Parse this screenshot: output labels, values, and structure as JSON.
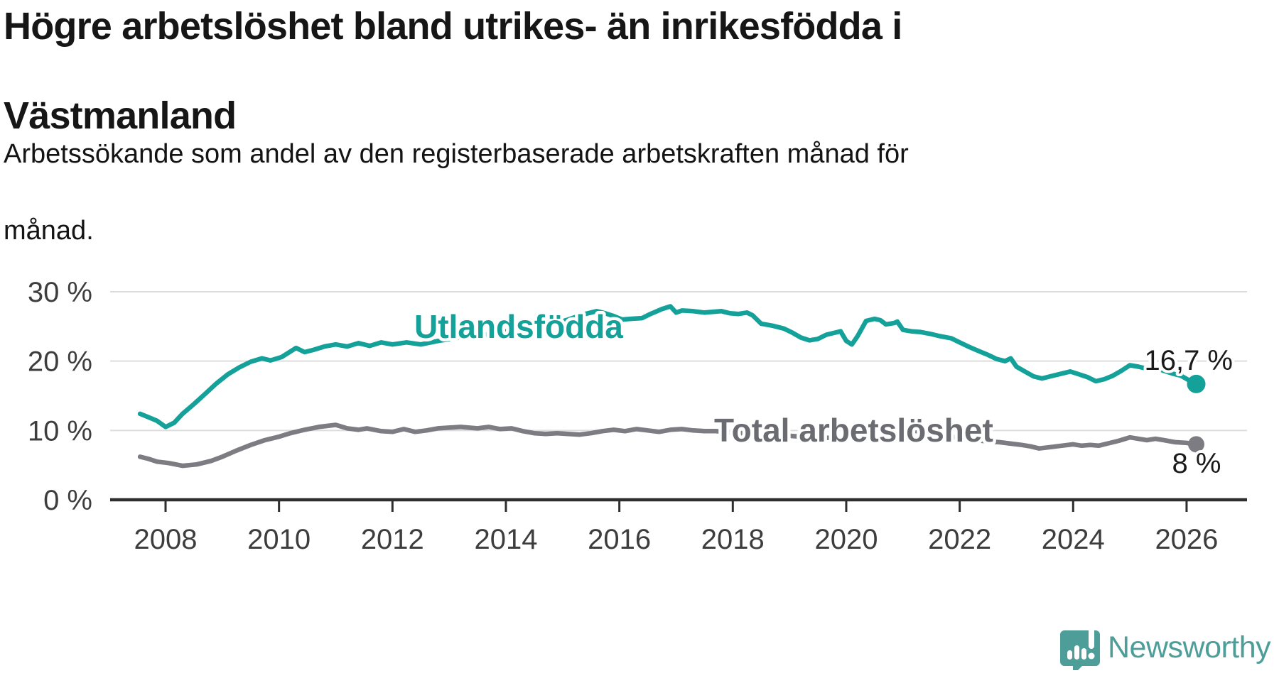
{
  "header": {
    "title_lines": [
      "Högre arbetslöshet bland utrikes- än inrikesfödda i",
      "Västmanland"
    ],
    "subtitle_lines": [
      "Arbetssökande som andel av den registerbaserade arbetskraften månad för",
      "månad."
    ]
  },
  "footer": {
    "brand": "Newsworthy"
  },
  "colors": {
    "series_utlandsfodda": "#13a199",
    "series_total": "#7c7c82",
    "series_total_label": "#6b6b72",
    "axis_text": "#3d3d3d",
    "axis_line": "#2e2e2e",
    "gridline": "#dddddd",
    "end_label_text": "#1a1a1a",
    "brand_teal": "#4d9d99",
    "background": "#ffffff"
  },
  "chart_data": {
    "type": "line",
    "title": "Högre arbetslöshet bland utrikes- än inrikesfödda i Västmanland",
    "subtitle": "Arbetssökande som andel av den registerbaserade arbetskraften månad för månad.",
    "unit": "%",
    "grid": "horizontal",
    "legend_position": "inline-labels",
    "xlim": [
      2007.3,
      2027.1
    ],
    "ylim": [
      0,
      32
    ],
    "x_ticks": [
      2008,
      2010,
      2012,
      2014,
      2016,
      2018,
      2020,
      2022,
      2024,
      2026
    ],
    "x_tick_labels": [
      "2008",
      "2010",
      "2012",
      "2014",
      "2016",
      "2018",
      "2020",
      "2022",
      "2024",
      "2026"
    ],
    "y_ticks": [
      0,
      10,
      20,
      30
    ],
    "y_tick_labels": [
      "0 %",
      "10 %",
      "20 %",
      "30 %"
    ],
    "series": [
      {
        "name": "Utlandsfödda",
        "end_label": "16,7 %",
        "last_value": 16.7,
        "points": [
          [
            2007.55,
            12.4
          ],
          [
            2007.7,
            11.9
          ],
          [
            2007.85,
            11.4
          ],
          [
            2008.0,
            10.5
          ],
          [
            2008.15,
            11.1
          ],
          [
            2008.3,
            12.4
          ],
          [
            2008.5,
            13.8
          ],
          [
            2008.7,
            15.3
          ],
          [
            2008.9,
            16.8
          ],
          [
            2009.1,
            18.1
          ],
          [
            2009.3,
            19.1
          ],
          [
            2009.5,
            19.9
          ],
          [
            2009.7,
            20.4
          ],
          [
            2009.85,
            20.1
          ],
          [
            2010.05,
            20.6
          ],
          [
            2010.3,
            21.9
          ],
          [
            2010.45,
            21.3
          ],
          [
            2010.6,
            21.6
          ],
          [
            2010.8,
            22.1
          ],
          [
            2011.0,
            22.4
          ],
          [
            2011.2,
            22.1
          ],
          [
            2011.4,
            22.6
          ],
          [
            2011.6,
            22.2
          ],
          [
            2011.8,
            22.7
          ],
          [
            2012.0,
            22.4
          ],
          [
            2012.25,
            22.7
          ],
          [
            2012.5,
            22.4
          ],
          [
            2012.8,
            22.9
          ],
          [
            2013.1,
            23.3
          ],
          [
            2013.4,
            23.6
          ],
          [
            2013.7,
            23.9
          ],
          [
            2014.0,
            24.3
          ],
          [
            2014.3,
            24.7
          ],
          [
            2014.6,
            25.1
          ],
          [
            2014.9,
            25.5
          ],
          [
            2015.1,
            26.0
          ],
          [
            2015.35,
            26.7
          ],
          [
            2015.6,
            27.2
          ],
          [
            2015.75,
            26.9
          ],
          [
            2015.9,
            26.5
          ],
          [
            2016.05,
            26.0
          ],
          [
            2016.2,
            26.1
          ],
          [
            2016.4,
            26.2
          ],
          [
            2016.55,
            26.8
          ],
          [
            2016.75,
            27.5
          ],
          [
            2016.9,
            27.9
          ],
          [
            2017.0,
            27.0
          ],
          [
            2017.1,
            27.3
          ],
          [
            2017.3,
            27.2
          ],
          [
            2017.5,
            27.0
          ],
          [
            2017.65,
            27.1
          ],
          [
            2017.8,
            27.2
          ],
          [
            2017.95,
            26.9
          ],
          [
            2018.1,
            26.8
          ],
          [
            2018.25,
            27.0
          ],
          [
            2018.35,
            26.6
          ],
          [
            2018.5,
            25.4
          ],
          [
            2018.7,
            25.1
          ],
          [
            2018.9,
            24.7
          ],
          [
            2019.05,
            24.1
          ],
          [
            2019.2,
            23.4
          ],
          [
            2019.35,
            23.0
          ],
          [
            2019.5,
            23.2
          ],
          [
            2019.65,
            23.8
          ],
          [
            2019.8,
            24.1
          ],
          [
            2019.9,
            24.3
          ],
          [
            2020.0,
            22.9
          ],
          [
            2020.1,
            22.4
          ],
          [
            2020.2,
            23.6
          ],
          [
            2020.35,
            25.8
          ],
          [
            2020.5,
            26.1
          ],
          [
            2020.6,
            25.9
          ],
          [
            2020.7,
            25.3
          ],
          [
            2020.85,
            25.5
          ],
          [
            2020.9,
            25.7
          ],
          [
            2021.0,
            24.5
          ],
          [
            2021.15,
            24.3
          ],
          [
            2021.3,
            24.2
          ],
          [
            2021.5,
            23.9
          ],
          [
            2021.65,
            23.6
          ],
          [
            2021.85,
            23.3
          ],
          [
            2022.0,
            22.7
          ],
          [
            2022.15,
            22.1
          ],
          [
            2022.35,
            21.4
          ],
          [
            2022.5,
            20.9
          ],
          [
            2022.65,
            20.3
          ],
          [
            2022.8,
            20.0
          ],
          [
            2022.9,
            20.4
          ],
          [
            2023.0,
            19.2
          ],
          [
            2023.15,
            18.5
          ],
          [
            2023.3,
            17.8
          ],
          [
            2023.45,
            17.5
          ],
          [
            2023.6,
            17.8
          ],
          [
            2023.75,
            18.1
          ],
          [
            2023.95,
            18.5
          ],
          [
            2024.1,
            18.1
          ],
          [
            2024.25,
            17.7
          ],
          [
            2024.4,
            17.1
          ],
          [
            2024.55,
            17.4
          ],
          [
            2024.7,
            17.9
          ],
          [
            2024.85,
            18.6
          ],
          [
            2025.0,
            19.4
          ],
          [
            2025.15,
            19.2
          ],
          [
            2025.3,
            18.9
          ],
          [
            2025.45,
            19.0
          ],
          [
            2025.6,
            18.6
          ],
          [
            2025.75,
            18.2
          ],
          [
            2025.9,
            17.9
          ],
          [
            2026.05,
            17.2
          ],
          [
            2026.17,
            16.7
          ]
        ]
      },
      {
        "name": "Total arbetslöshet",
        "end_label": "8 %",
        "last_value": 8,
        "points": [
          [
            2007.55,
            6.2
          ],
          [
            2007.7,
            5.9
          ],
          [
            2007.85,
            5.5
          ],
          [
            2008.05,
            5.3
          ],
          [
            2008.3,
            4.9
          ],
          [
            2008.55,
            5.1
          ],
          [
            2008.8,
            5.6
          ],
          [
            2009.0,
            6.2
          ],
          [
            2009.25,
            7.1
          ],
          [
            2009.5,
            7.9
          ],
          [
            2009.75,
            8.6
          ],
          [
            2010.0,
            9.1
          ],
          [
            2010.2,
            9.6
          ],
          [
            2010.45,
            10.1
          ],
          [
            2010.7,
            10.5
          ],
          [
            2011.0,
            10.8
          ],
          [
            2011.2,
            10.3
          ],
          [
            2011.4,
            10.1
          ],
          [
            2011.55,
            10.3
          ],
          [
            2011.8,
            9.9
          ],
          [
            2012.0,
            9.8
          ],
          [
            2012.2,
            10.2
          ],
          [
            2012.4,
            9.8
          ],
          [
            2012.6,
            10.0
          ],
          [
            2012.8,
            10.3
          ],
          [
            2013.0,
            10.4
          ],
          [
            2013.2,
            10.5
          ],
          [
            2013.5,
            10.3
          ],
          [
            2013.7,
            10.5
          ],
          [
            2013.9,
            10.2
          ],
          [
            2014.1,
            10.3
          ],
          [
            2014.3,
            9.9
          ],
          [
            2014.5,
            9.6
          ],
          [
            2014.7,
            9.5
          ],
          [
            2014.9,
            9.6
          ],
          [
            2015.1,
            9.5
          ],
          [
            2015.3,
            9.4
          ],
          [
            2015.5,
            9.6
          ],
          [
            2015.7,
            9.9
          ],
          [
            2015.9,
            10.1
          ],
          [
            2016.1,
            9.9
          ],
          [
            2016.3,
            10.2
          ],
          [
            2016.5,
            10.0
          ],
          [
            2016.7,
            9.8
          ],
          [
            2016.9,
            10.1
          ],
          [
            2017.1,
            10.2
          ],
          [
            2017.3,
            10.0
          ],
          [
            2017.5,
            9.9
          ],
          [
            2017.7,
            9.9
          ],
          [
            2018.0,
            9.7
          ],
          [
            2018.3,
            9.5
          ],
          [
            2018.6,
            9.4
          ],
          [
            2018.9,
            9.3
          ],
          [
            2019.2,
            9.1
          ],
          [
            2019.5,
            9.0
          ],
          [
            2019.8,
            8.9
          ],
          [
            2020.0,
            9.0
          ],
          [
            2020.3,
            10.3
          ],
          [
            2020.5,
            10.8
          ],
          [
            2020.7,
            10.6
          ],
          [
            2020.9,
            10.4
          ],
          [
            2021.1,
            10.1
          ],
          [
            2021.4,
            9.7
          ],
          [
            2021.7,
            9.3
          ],
          [
            2022.0,
            8.9
          ],
          [
            2022.2,
            8.7
          ],
          [
            2022.4,
            8.5
          ],
          [
            2022.55,
            8.4
          ],
          [
            2022.7,
            8.3
          ],
          [
            2022.9,
            8.1
          ],
          [
            2023.1,
            7.9
          ],
          [
            2023.25,
            7.7
          ],
          [
            2023.4,
            7.4
          ],
          [
            2023.6,
            7.6
          ],
          [
            2023.8,
            7.8
          ],
          [
            2024.0,
            8.0
          ],
          [
            2024.15,
            7.8
          ],
          [
            2024.3,
            7.9
          ],
          [
            2024.45,
            7.8
          ],
          [
            2024.6,
            8.1
          ],
          [
            2024.8,
            8.5
          ],
          [
            2025.0,
            9.0
          ],
          [
            2025.15,
            8.8
          ],
          [
            2025.3,
            8.6
          ],
          [
            2025.45,
            8.8
          ],
          [
            2025.6,
            8.6
          ],
          [
            2025.8,
            8.3
          ],
          [
            2026.0,
            8.2
          ],
          [
            2026.17,
            8.0
          ]
        ]
      }
    ]
  }
}
